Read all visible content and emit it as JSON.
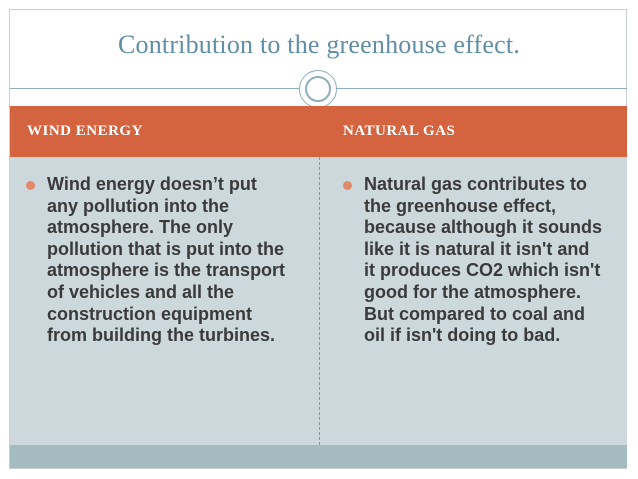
{
  "slide": {
    "title": "Contribution to the greenhouse effect."
  },
  "table": {
    "headers": [
      "WIND ENERGY",
      "NATURAL GAS"
    ],
    "cells": [
      "Wind energy doesn’t put any pollution into the atmosphere. The only pollution that is put into the atmosphere is the transport of vehicles and all the construction equipment from building the turbines.",
      "Natural gas contributes to the greenhouse effect, because although it sounds like it is natural it isn't and it produces CO2 which isn't good for the atmosphere. But compared to coal and oil if isn't doing to bad."
    ]
  },
  "colors": {
    "title": "#5f8ea6",
    "header_background": "#d4643f",
    "body_background": "#cdd8dc",
    "footer_band": "#a5bbc2",
    "bullet": "#e08a6a"
  }
}
